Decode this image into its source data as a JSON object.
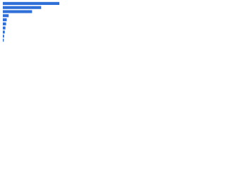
{
  "chart_data": {
    "type": "bar",
    "orientation": "horizontal",
    "categories": [
      null,
      null,
      null,
      null,
      null,
      null,
      null,
      null,
      null,
      null
    ],
    "values": [
      87,
      59,
      45,
      9,
      6,
      5,
      4,
      3,
      2,
      1.5
    ],
    "color": "#2f6fd8",
    "xlim": [
      0,
      100
    ]
  }
}
